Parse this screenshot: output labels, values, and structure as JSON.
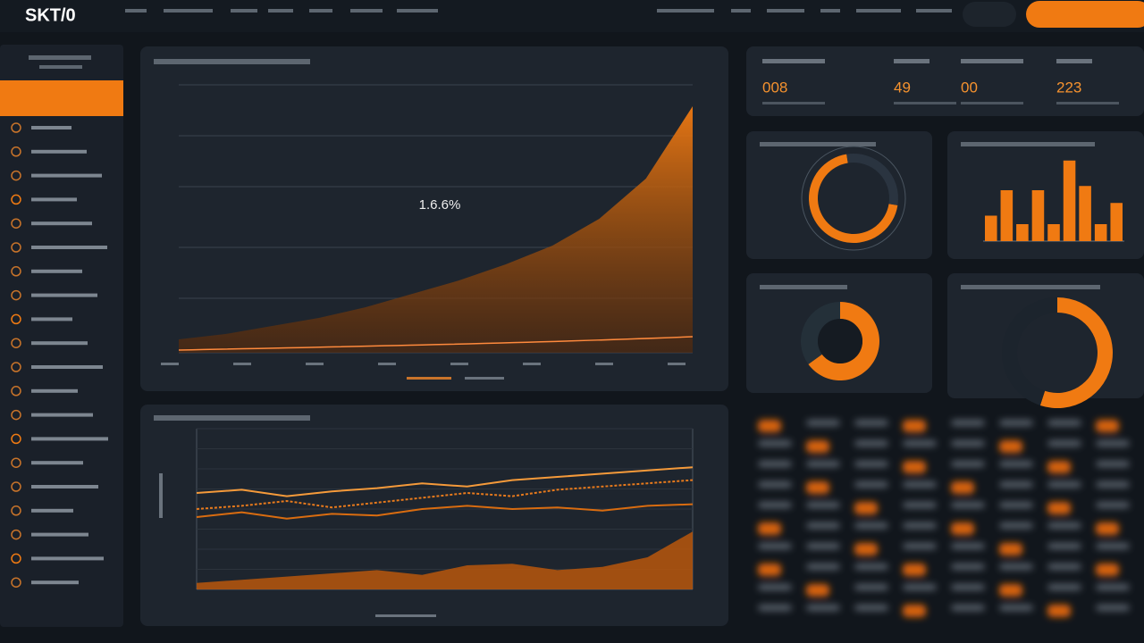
{
  "header": {
    "logo": "SKT/0"
  },
  "kpis": [
    {
      "value": "008"
    },
    {
      "value": "49"
    },
    {
      "value": "00"
    },
    {
      "value": "223"
    }
  ],
  "chart_data": [
    {
      "type": "area",
      "annotation": "1.6.6%",
      "color": "#f07a12",
      "ylim": [
        0,
        100
      ],
      "values": [
        5,
        7,
        10,
        13,
        17,
        22,
        27,
        33,
        40,
        50,
        65,
        92
      ]
    },
    {
      "type": "multiline",
      "ylim": [
        0,
        100
      ],
      "series": [
        {
          "color": "#f59a3a",
          "values": [
            60,
            62,
            58,
            61,
            63,
            66,
            64,
            68,
            70,
            72,
            74,
            76
          ]
        },
        {
          "color": "#e87a1c",
          "values": [
            50,
            52,
            55,
            51,
            54,
            57,
            60,
            58,
            62,
            64,
            66,
            68
          ]
        },
        {
          "color": "#d96c10",
          "values": [
            45,
            48,
            44,
            47,
            46,
            50,
            52,
            50,
            51,
            49,
            52,
            53
          ]
        },
        {
          "color": "#b8570c",
          "area": true,
          "values": [
            4,
            6,
            8,
            10,
            12,
            9,
            15,
            16,
            12,
            14,
            20,
            36
          ]
        }
      ]
    },
    {
      "type": "gauge",
      "values": [
        70,
        30
      ],
      "colors": [
        "#f07a12",
        "#2a3440"
      ]
    },
    {
      "type": "bar",
      "color": "#f07a12",
      "ylim": [
        0,
        100
      ],
      "values": [
        30,
        60,
        20,
        60,
        20,
        95,
        65,
        20,
        45
      ]
    },
    {
      "type": "donut",
      "values": [
        65,
        35
      ],
      "colors": [
        "#f07a12",
        "#243039"
      ]
    },
    {
      "type": "donut",
      "values": [
        55,
        45
      ],
      "colors": [
        "#f07a12",
        "#1c242d"
      ]
    }
  ]
}
